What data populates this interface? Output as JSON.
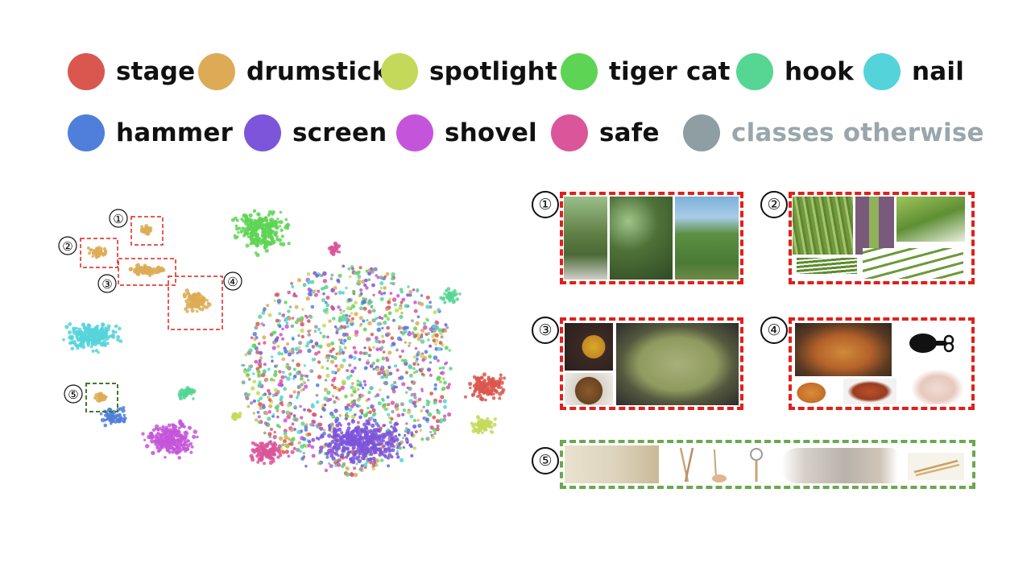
{
  "legend": {
    "items": [
      {
        "label": "stage",
        "color": "#d9574f"
      },
      {
        "label": "drumstick",
        "color": "#ddab55"
      },
      {
        "label": "spotlight",
        "color": "#c4d95a"
      },
      {
        "label": "tiger cat",
        "color": "#5ed455"
      },
      {
        "label": "hook",
        "color": "#55d693"
      },
      {
        "label": "nail",
        "color": "#55d3db"
      },
      {
        "label": "hammer",
        "color": "#4f7fdb"
      },
      {
        "label": "screen",
        "color": "#7d55db"
      },
      {
        "label": "shovel",
        "color": "#c455db"
      },
      {
        "label": "safe",
        "color": "#db559a"
      },
      {
        "label": "classes otherwise",
        "color": "#8f9ea3"
      }
    ]
  },
  "scatter": {
    "callouts": [
      {
        "number": "①"
      },
      {
        "number": "②"
      },
      {
        "number": "③"
      },
      {
        "number": "④"
      },
      {
        "number": "⑤"
      }
    ]
  },
  "panels": [
    {
      "number": "①",
      "frame_color": "#e0201b",
      "content": "drumstick tree photos"
    },
    {
      "number": "②",
      "frame_color": "#e0201b",
      "content": "drumstick vegetable photos"
    },
    {
      "number": "③",
      "frame_color": "#e0201b",
      "content": "drumstick curry photos"
    },
    {
      "number": "④",
      "frame_color": "#e0201b",
      "content": "chicken drumstick photos"
    },
    {
      "number": "⑤",
      "frame_color": "#6aa84f",
      "content": "drum stick objects photos"
    }
  ]
}
